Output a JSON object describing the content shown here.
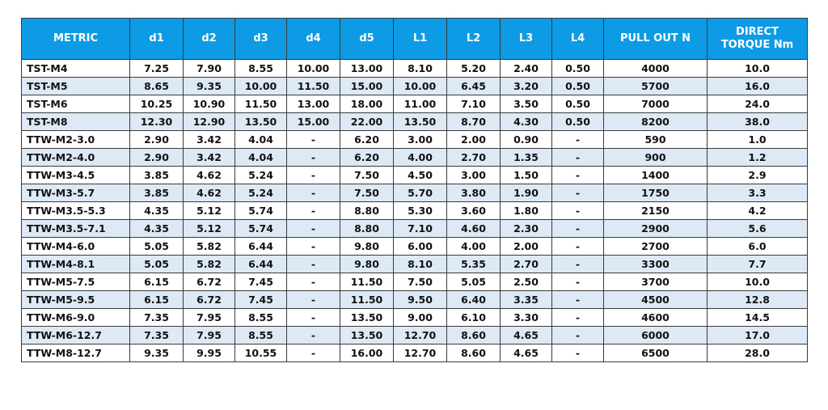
{
  "table": {
    "headers": [
      "METRIC",
      "d1",
      "d2",
      "d3",
      "d4",
      "d5",
      "L1",
      "L2",
      "L3",
      "L4",
      "PULL OUT N",
      "DIRECT\nTORQUE Nm"
    ],
    "rows": [
      [
        "TST-M4",
        "7.25",
        "7.90",
        "8.55",
        "10.00",
        "13.00",
        "8.10",
        "5.20",
        "2.40",
        "0.50",
        "4000",
        "10.0"
      ],
      [
        "TST-M5",
        "8.65",
        "9.35",
        "10.00",
        "11.50",
        "15.00",
        "10.00",
        "6.45",
        "3.20",
        "0.50",
        "5700",
        "16.0"
      ],
      [
        "TST-M6",
        "10.25",
        "10.90",
        "11.50",
        "13.00",
        "18.00",
        "11.00",
        "7.10",
        "3.50",
        "0.50",
        "7000",
        "24.0"
      ],
      [
        "TST-M8",
        "12.30",
        "12.90",
        "13.50",
        "15.00",
        "22.00",
        "13.50",
        "8.70",
        "4.30",
        "0.50",
        "8200",
        "38.0"
      ],
      [
        "TTW-M2-3.0",
        "2.90",
        "3.42",
        "4.04",
        "-",
        "6.20",
        "3.00",
        "2.00",
        "0.90",
        "-",
        "590",
        "1.0"
      ],
      [
        "TTW-M2-4.0",
        "2.90",
        "3.42",
        "4.04",
        "-",
        "6.20",
        "4.00",
        "2.70",
        "1.35",
        "-",
        "900",
        "1.2"
      ],
      [
        "TTW-M3-4.5",
        "3.85",
        "4.62",
        "5.24",
        "-",
        "7.50",
        "4.50",
        "3.00",
        "1.50",
        "-",
        "1400",
        "2.9"
      ],
      [
        "TTW-M3-5.7",
        "3.85",
        "4.62",
        "5.24",
        "-",
        "7.50",
        "5.70",
        "3.80",
        "1.90",
        "-",
        "1750",
        "3.3"
      ],
      [
        "TTW-M3.5-5.3",
        "4.35",
        "5.12",
        "5.74",
        "-",
        "8.80",
        "5.30",
        "3.60",
        "1.80",
        "-",
        "2150",
        "4.2"
      ],
      [
        "TTW-M3.5-7.1",
        "4.35",
        "5.12",
        "5.74",
        "-",
        "8.80",
        "7.10",
        "4.60",
        "2.30",
        "-",
        "2900",
        "5.6"
      ],
      [
        "TTW-M4-6.0",
        "5.05",
        "5.82",
        "6.44",
        "-",
        "9.80",
        "6.00",
        "4.00",
        "2.00",
        "-",
        "2700",
        "6.0"
      ],
      [
        "TTW-M4-8.1",
        "5.05",
        "5.82",
        "6.44",
        "-",
        "9.80",
        "8.10",
        "5.35",
        "2.70",
        "-",
        "3300",
        "7.7"
      ],
      [
        "TTW-M5-7.5",
        "6.15",
        "6.72",
        "7.45",
        "-",
        "11.50",
        "7.50",
        "5.05",
        "2.50",
        "-",
        "3700",
        "10.0"
      ],
      [
        "TTW-M5-9.5",
        "6.15",
        "6.72",
        "7.45",
        "-",
        "11.50",
        "9.50",
        "6.40",
        "3.35",
        "-",
        "4500",
        "12.8"
      ],
      [
        "TTW-M6-9.0",
        "7.35",
        "7.95",
        "8.55",
        "-",
        "13.50",
        "9.00",
        "6.10",
        "3.30",
        "-",
        "4600",
        "14.5"
      ],
      [
        "TTW-M6-12.7",
        "7.35",
        "7.95",
        "8.55",
        "-",
        "13.50",
        "12.70",
        "8.60",
        "4.65",
        "-",
        "6000",
        "17.0"
      ],
      [
        "TTW-M8-12.7",
        "9.35",
        "9.95",
        "10.55",
        "-",
        "16.00",
        "12.70",
        "8.60",
        "4.65",
        "-",
        "6500",
        "28.0"
      ]
    ]
  },
  "colors": {
    "header_bg": "#0d9be6",
    "header_text": "#ffffff",
    "row_alt_bg": "#dde9f5",
    "border": "#3a3a3a"
  }
}
